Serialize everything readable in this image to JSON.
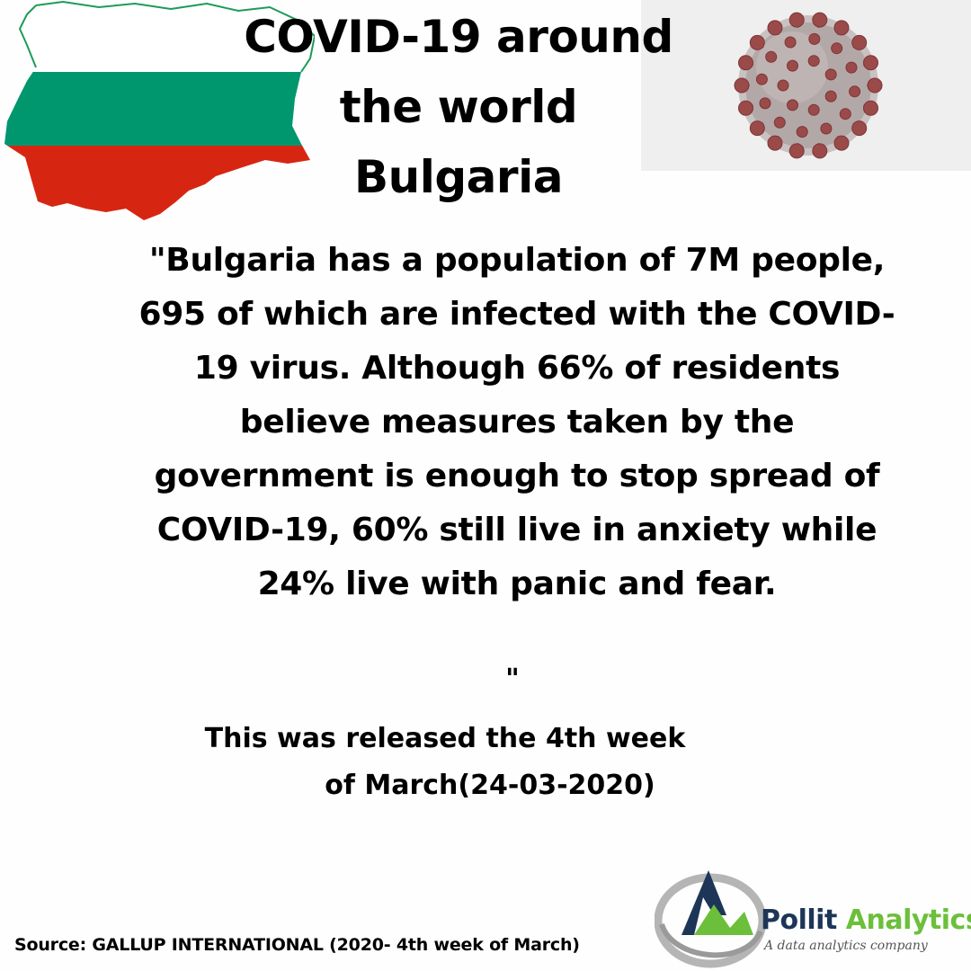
{
  "header": {
    "title_lines": [
      "COVID-19 around",
      "the world",
      "Bulgaria"
    ]
  },
  "body": {
    "quote": "\"Bulgaria has a population of 7M people, 695 of which are infected with the COVID-19 virus. Although 66% of residents believe measures taken by the government is enough to stop spread of COVID-19, 60% still live in anxiety while 24% live with panic and fear.",
    "quote_close": "\"",
    "release_lines": [
      "This was released the 4th week",
      "of March(24-03-2020)"
    ]
  },
  "footer": {
    "source": "Source: GALLUP INTERNATIONAL (2020- 4th week of March)",
    "logo_name_part1": "Pollit",
    "logo_name_part2": "Analytics",
    "logo_tagline": "A data analytics company"
  },
  "colors": {
    "flag_white": "#ffffff",
    "flag_green": "#00966e",
    "flag_red": "#d62612",
    "map_outline": "#1e9a5a",
    "virus_body": "#b3a8a8",
    "virus_spike": "#9b4a4a",
    "logo_navy": "#1d3557",
    "logo_green": "#6cbf3a"
  },
  "icons": {
    "flag_map": "bulgaria-flag-map-icon",
    "virus": "coronavirus-icon",
    "logo": "pollit-analytics-logo-icon"
  }
}
